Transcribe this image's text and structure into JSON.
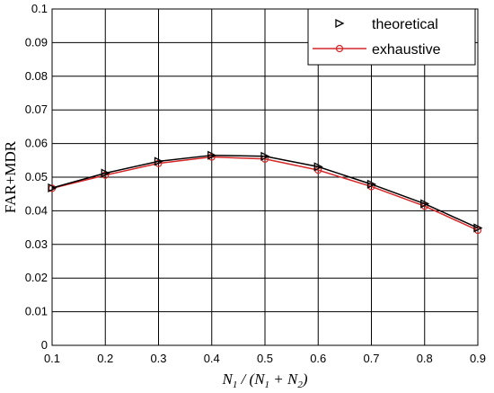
{
  "chart_data": {
    "type": "line",
    "x": [
      0.1,
      0.2,
      0.3,
      0.4,
      0.5,
      0.6,
      0.7,
      0.8,
      0.9
    ],
    "series": [
      {
        "name": "theoretical",
        "color": "#000000",
        "marker": "triangle-right",
        "values": [
          0.0468,
          0.0512,
          0.0547,
          0.0565,
          0.0562,
          0.0531,
          0.0479,
          0.0421,
          0.0349
        ]
      },
      {
        "name": "exhaustive",
        "color": "#d62728",
        "marker": "circle",
        "values": [
          0.0467,
          0.0506,
          0.0541,
          0.056,
          0.0554,
          0.0521,
          0.0472,
          0.0414,
          0.0342
        ]
      }
    ],
    "xlim": [
      0.1,
      0.9
    ],
    "ylim": [
      0,
      0.1
    ],
    "xticks": [
      "0.1",
      "0.2",
      "0.3",
      "0.4",
      "0.5",
      "0.6",
      "0.7",
      "0.8",
      "0.9"
    ],
    "yticks": [
      "0",
      "0.01",
      "0.02",
      "0.03",
      "0.04",
      "0.05",
      "0.06",
      "0.07",
      "0.08",
      "0.09",
      "0.1"
    ],
    "ylabel": "FAR+MDR",
    "xlabel": "N1 / (N1 + N2)",
    "grid": true,
    "legend_position": "top-right"
  }
}
